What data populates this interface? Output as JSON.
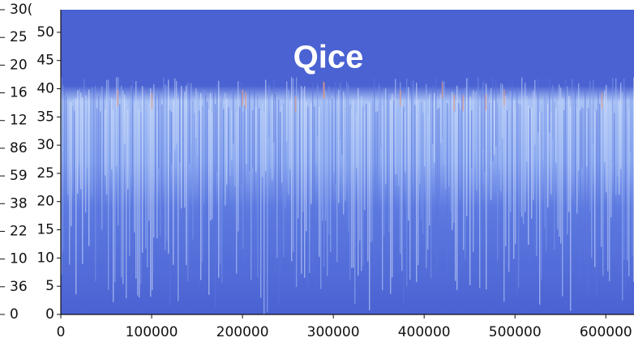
{
  "chart_data": {
    "type": "heatmap",
    "annotation": "Qice",
    "colorbar_labels": [
      "30(",
      "25",
      "20",
      "16",
      "12",
      "86",
      "59",
      "38",
      "22",
      "10",
      "36",
      "0"
    ],
    "xlim": [
      0,
      631000
    ],
    "xticks": [
      0,
      100000,
      200000,
      300000,
      400000,
      500000,
      600000
    ],
    "ylim": [
      0,
      54
    ],
    "yticks": [
      0,
      5,
      10,
      15,
      20,
      25,
      30,
      35,
      40,
      45,
      50
    ]
  }
}
